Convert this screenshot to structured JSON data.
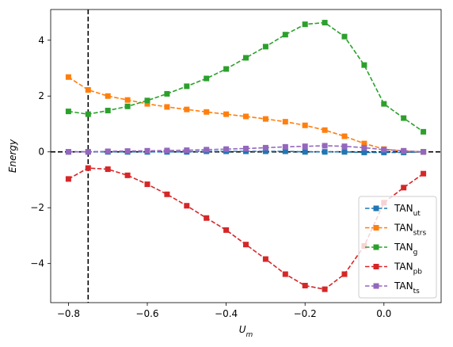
{
  "chart_data": {
    "type": "line",
    "title": "",
    "xlabel": "U",
    "xlabel_sub": "m",
    "ylabel": "Energy",
    "xlim": [
      -0.845,
      0.145
    ],
    "ylim": [
      -5.4,
      5.1
    ],
    "x_ticks": [
      -0.8,
      -0.6,
      -0.4,
      -0.2,
      0.0
    ],
    "x_tick_labels": [
      "−0.8",
      "−0.6",
      "−0.4",
      "−0.2",
      "0.0"
    ],
    "y_ticks": [
      -4,
      -2,
      0,
      2,
      4
    ],
    "y_tick_labels": [
      "−4",
      "−2",
      "0",
      "2",
      "4"
    ],
    "grid": false,
    "legend_position": "lower-right",
    "reference_lines": {
      "vertical_x": -0.75,
      "horizontal_y": 0
    },
    "x": [
      -0.8,
      -0.75,
      -0.7,
      -0.65,
      -0.6,
      -0.55,
      -0.5,
      -0.45,
      -0.4,
      -0.35,
      -0.3,
      -0.25,
      -0.2,
      -0.15,
      -0.1,
      -0.05,
      0.0,
      0.05,
      0.1
    ],
    "series": [
      {
        "name": "TAN",
        "name_sub": "ut",
        "color": "#1f77b4",
        "values": [
          0.0,
          0.0,
          0.0,
          0.0,
          0.0,
          0.0,
          0.0,
          0.02,
          0.02,
          0.02,
          0.02,
          0.02,
          0.0,
          0.0,
          0.0,
          -0.02,
          -0.02,
          -0.02,
          0.0
        ]
      },
      {
        "name": "TAN",
        "name_sub": "strs",
        "color": "#ff7f0e",
        "values": [
          2.68,
          2.22,
          2.0,
          1.86,
          1.72,
          1.61,
          1.52,
          1.43,
          1.35,
          1.27,
          1.18,
          1.08,
          0.95,
          0.78,
          0.56,
          0.3,
          0.1,
          0.03,
          0.0
        ]
      },
      {
        "name": "TAN",
        "name_sub": "g",
        "color": "#2ca02c",
        "values": [
          1.45,
          1.35,
          1.48,
          1.63,
          1.84,
          2.08,
          2.35,
          2.63,
          2.97,
          3.37,
          3.77,
          4.2,
          4.57,
          4.63,
          4.13,
          3.11,
          1.72,
          1.21,
          0.72
        ]
      },
      {
        "name": "TAN",
        "name_sub": "pb",
        "color": "#d62728",
        "values": [
          -0.97,
          -0.58,
          -0.62,
          -0.84,
          -1.16,
          -1.52,
          -1.93,
          -2.37,
          -2.8,
          -3.32,
          -3.84,
          -4.38,
          -4.79,
          -4.92,
          -4.38,
          -3.37,
          -1.82,
          -1.28,
          -0.78
        ]
      },
      {
        "name": "TAN",
        "name_sub": "ts",
        "color": "#9467bd",
        "values": [
          0.0,
          0.0,
          0.02,
          0.03,
          0.04,
          0.05,
          0.06,
          0.08,
          0.1,
          0.12,
          0.15,
          0.18,
          0.2,
          0.22,
          0.2,
          0.15,
          0.08,
          0.04,
          0.0
        ]
      }
    ]
  }
}
